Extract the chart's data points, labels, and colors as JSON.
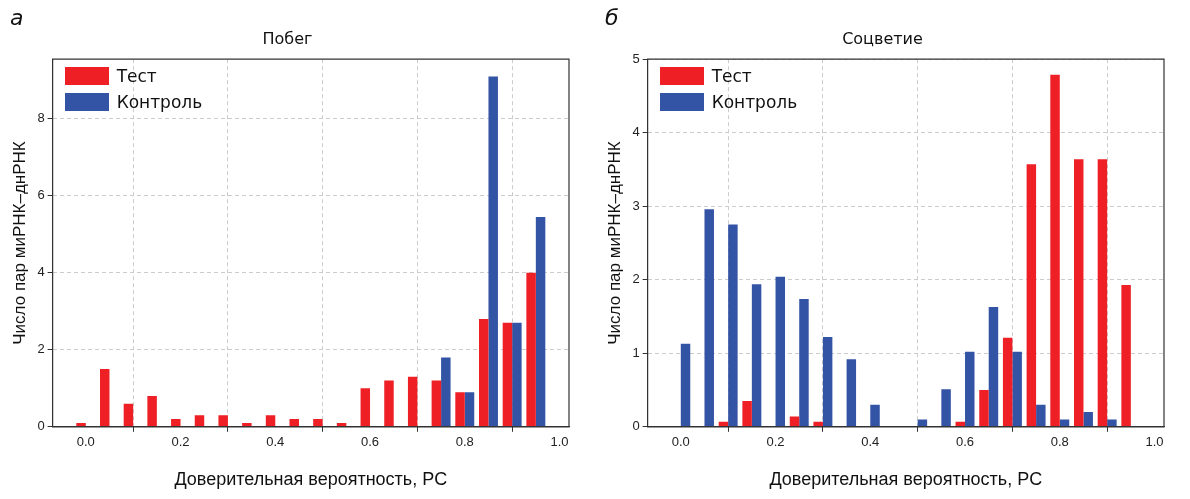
{
  "chart_data": [
    {
      "type": "histogram",
      "title": "Побег",
      "xlabel": "Доверительная вероятность, PC",
      "ylabel": "Число пар миРНК–днРНК",
      "annotations": [
        "а"
      ],
      "bins": [
        -0.025,
        0.025,
        0.075,
        0.125,
        0.175,
        0.225,
        0.275,
        0.325,
        0.375,
        0.425,
        0.475,
        0.525,
        0.575,
        0.625,
        0.675,
        0.725,
        0.775,
        0.825,
        0.875,
        0.925,
        0.975
      ],
      "series": [
        {
          "name": "Тест",
          "color": "#ee1f25",
          "values": [
            0.1,
            1.5,
            0.6,
            0.8,
            0.2,
            0.3,
            0.3,
            0.1,
            0.3,
            0.2,
            0.2,
            0.1,
            1.0,
            1.2,
            1.3,
            1.2,
            0.9,
            2.8,
            2.7,
            4.0
          ]
        },
        {
          "name": "Контроль",
          "color": "#3353a5",
          "values": [
            0,
            0,
            0,
            0,
            0,
            0,
            0,
            0,
            0,
            0,
            0,
            0,
            0,
            0,
            0,
            1.8,
            0.9,
            9.1,
            2.7,
            5.45
          ]
        }
      ],
      "xlim": [
        -0.07,
        1.02
      ],
      "xticks": [
        {
          "value": 0,
          "label": "0.0"
        },
        {
          "value": 0.2,
          "label": "0.2"
        },
        {
          "value": 0.4,
          "label": "0.4"
        },
        {
          "value": 0.6,
          "label": "0.6"
        },
        {
          "value": 0.8,
          "label": "0.8"
        },
        {
          "value": 1,
          "label": "1.0"
        }
      ],
      "ylim": [
        0,
        9.55
      ],
      "yticks": [
        0,
        2,
        4,
        6,
        8
      ],
      "grid": true,
      "legend": "top left"
    },
    {
      "type": "histogram",
      "title": "Соцветие",
      "xlabel": "Доверительная вероятность, PC",
      "ylabel": "Число пар миРНК–днРНК",
      "annotations": [
        "б"
      ],
      "bins": [
        -0.025,
        0.025,
        0.075,
        0.125,
        0.175,
        0.225,
        0.275,
        0.325,
        0.375,
        0.425,
        0.475,
        0.525,
        0.575,
        0.625,
        0.675,
        0.725,
        0.775,
        0.825,
        0.875,
        0.925,
        0.975
      ],
      "series": [
        {
          "name": "Тест",
          "color": "#ee1f25",
          "values": [
            0,
            0,
            0.07,
            0.35,
            0,
            0.14,
            0.07,
            0,
            0,
            0,
            0,
            0,
            0.07,
            0.5,
            1.21,
            3.57,
            4.79,
            3.64,
            3.64,
            1.93
          ]
        },
        {
          "name": "Контроль",
          "color": "#3353a5",
          "values": [
            1.13,
            2.96,
            2.75,
            1.94,
            2.04,
            1.74,
            1.22,
            0.92,
            0.3,
            0,
            0.1,
            0.51,
            1.02,
            1.63,
            1.02,
            0.3,
            0.1,
            0.2,
            0.1,
            0
          ]
        }
      ],
      "xlim": [
        -0.07,
        1.02
      ],
      "xticks": [
        {
          "value": 0,
          "label": "0.0"
        },
        {
          "value": 0.2,
          "label": "0.2"
        },
        {
          "value": 0.4,
          "label": "0.4"
        },
        {
          "value": 0.6,
          "label": "0.6"
        },
        {
          "value": 0.8,
          "label": "0.8"
        },
        {
          "value": 1,
          "label": "1.0"
        }
      ],
      "ylim": [
        0,
        5
      ],
      "yticks": [
        0,
        1,
        2,
        3,
        4,
        5
      ],
      "grid": true,
      "legend": "top left"
    }
  ]
}
